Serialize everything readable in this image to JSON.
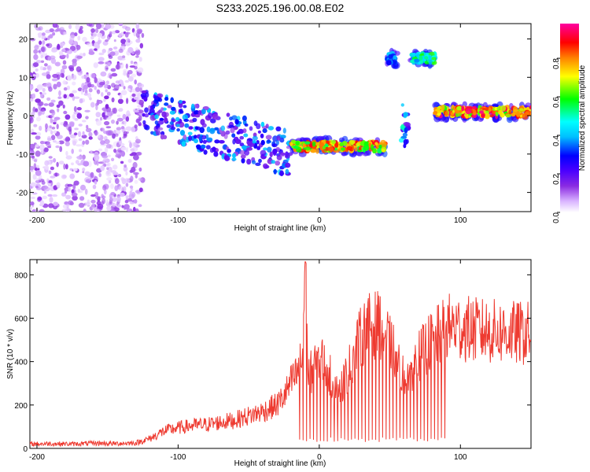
{
  "title": "S233.2025.196.00.08.E02",
  "chart_data": [
    {
      "type": "heatmap",
      "title": "",
      "xlabel": "Height of straight line (km)",
      "ylabel": "Frequency (Hz)",
      "xlim": [
        -205,
        150
      ],
      "ylim": [
        -25,
        24
      ],
      "x_ticks": [
        -200,
        -100,
        0,
        100
      ],
      "y_ticks": [
        -20,
        -10,
        0,
        10,
        20
      ],
      "colorbar": {
        "label": "Normalized spectral amplitude",
        "range": [
          0,
          0.98
        ],
        "ticks": [
          0,
          0.2,
          0.4,
          0.6,
          0.8
        ],
        "tick_labels": [
          "0.0",
          "0.2",
          "0.4",
          "0.6",
          "0.8"
        ],
        "colormap": [
          "#ffffff",
          "#d9b3ff",
          "#8a2be2",
          "#4b00ff",
          "#0000ff",
          "#00bfff",
          "#00ffff",
          "#00ff00",
          "#ffff00",
          "#ff8000",
          "#ff0000",
          "#ff00a0"
        ]
      },
      "segments": [
        {
          "description": "scattered noise",
          "x_range": [
            -205,
            -125
          ],
          "freq_range": [
            -25,
            24
          ],
          "amplitude": 0.12
        },
        {
          "description": "decreasing band",
          "x_range": [
            -125,
            -20
          ],
          "freq_start": 1,
          "freq_end": -10,
          "amplitude": 0.35
        },
        {
          "description": "steady band",
          "x_range": [
            -20,
            47
          ],
          "freq": -8,
          "amplitude": 0.85
        },
        {
          "description": "upper band",
          "x_range": [
            48,
            55
          ],
          "freq": 15,
          "amplitude": 0.5
        },
        {
          "description": "lower spot",
          "x_range": [
            58,
            63
          ],
          "freq": -3,
          "amplitude": 0.45
        },
        {
          "description": "upper band",
          "x_range": [
            65,
            82
          ],
          "freq": 15,
          "amplitude": 0.6
        },
        {
          "description": "steady band",
          "x_range": [
            82,
            150
          ],
          "freq": 1,
          "amplitude": 0.9
        }
      ]
    },
    {
      "type": "line",
      "title": "",
      "xlabel": "Height of straight line (km)",
      "ylabel": "SNR (10 * v/v)",
      "xlim": [
        -205,
        150
      ],
      "ylim": [
        0,
        870
      ],
      "x_ticks": [
        -200,
        -100,
        0,
        100
      ],
      "y_ticks": [
        0,
        200,
        400,
        600,
        800
      ],
      "color": "#ee3a30",
      "series": [
        {
          "x": [
            -205,
            -190,
            -175,
            -160,
            -145,
            -130,
            -120,
            -110,
            -100,
            -90,
            -80,
            -70,
            -60,
            -50,
            -40,
            -30,
            -25,
            -20,
            -15,
            -12,
            -10,
            -8,
            -5,
            0,
            5,
            10,
            15,
            20,
            25,
            30,
            35,
            40,
            45,
            50,
            55,
            60,
            65,
            70,
            75,
            80,
            85,
            90,
            95,
            100,
            110,
            120,
            130,
            140,
            150
          ],
          "y": [
            20,
            22,
            20,
            24,
            22,
            25,
            45,
            80,
            95,
            105,
            110,
            120,
            130,
            150,
            170,
            200,
            240,
            300,
            350,
            420,
            860,
            330,
            360,
            420,
            380,
            300,
            280,
            350,
            450,
            520,
            560,
            570,
            560,
            480,
            420,
            330,
            360,
            420,
            460,
            500,
            520,
            560,
            560,
            555,
            545,
            540,
            535,
            530,
            530
          ]
        }
      ],
      "dropout_x_range": [
        -15,
        90
      ]
    }
  ]
}
